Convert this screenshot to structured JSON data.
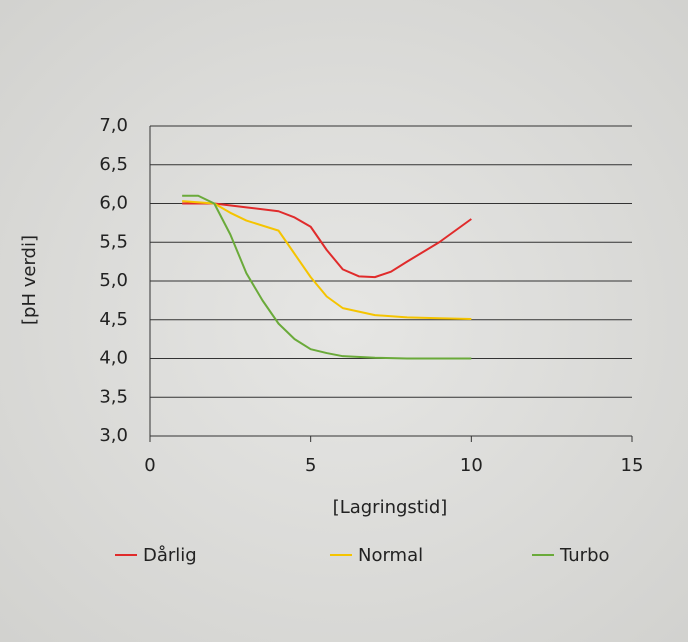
{
  "chart_data": {
    "type": "line",
    "xlabel": "[Lagringstid]",
    "ylabel": "[pH verdi]",
    "xlim": [
      0,
      15
    ],
    "xticks": [
      0,
      5,
      10,
      15
    ],
    "ylim": [
      3,
      7
    ],
    "yticks": [
      {
        "value": 3,
        "label": "3,0"
      },
      {
        "value": 3.5,
        "label": "3,5"
      },
      {
        "value": 4,
        "label": "4,0"
      },
      {
        "value": 4.5,
        "label": "4,5"
      },
      {
        "value": 5,
        "label": "5,0"
      },
      {
        "value": 5.5,
        "label": "5,5"
      },
      {
        "value": 6,
        "label": "6,0"
      },
      {
        "value": 6.5,
        "label": "6,5"
      },
      {
        "value": 7,
        "label": "7,0"
      }
    ],
    "grid": true,
    "legend": "bottom",
    "series": [
      {
        "name": "Dårlig",
        "color": "#e02b2b",
        "x": [
          1,
          2,
          3,
          4,
          4.5,
          5,
          5.5,
          6,
          6.5,
          7,
          7.5,
          8,
          9,
          10
        ],
        "values": [
          6.0,
          6.0,
          5.95,
          5.9,
          5.82,
          5.7,
          5.4,
          5.15,
          5.06,
          5.05,
          5.12,
          5.25,
          5.5,
          5.8
        ]
      },
      {
        "name": "Normal",
        "color": "#f5c400",
        "x": [
          1,
          2,
          2.5,
          3,
          4,
          4.5,
          5,
          5.5,
          6,
          7,
          8,
          9,
          10
        ],
        "values": [
          6.03,
          6.0,
          5.88,
          5.78,
          5.65,
          5.35,
          5.05,
          4.8,
          4.65,
          4.56,
          4.53,
          4.52,
          4.51
        ]
      },
      {
        "name": "Turbo",
        "color": "#6aaa3a",
        "x": [
          1,
          1.5,
          2,
          2.5,
          3,
          3.5,
          4,
          4.5,
          5,
          5.5,
          6,
          7,
          8,
          9,
          10
        ],
        "values": [
          6.1,
          6.1,
          6.0,
          5.6,
          5.1,
          4.75,
          4.45,
          4.25,
          4.12,
          4.07,
          4.03,
          4.01,
          4.0,
          4.0,
          4.0
        ]
      }
    ]
  }
}
